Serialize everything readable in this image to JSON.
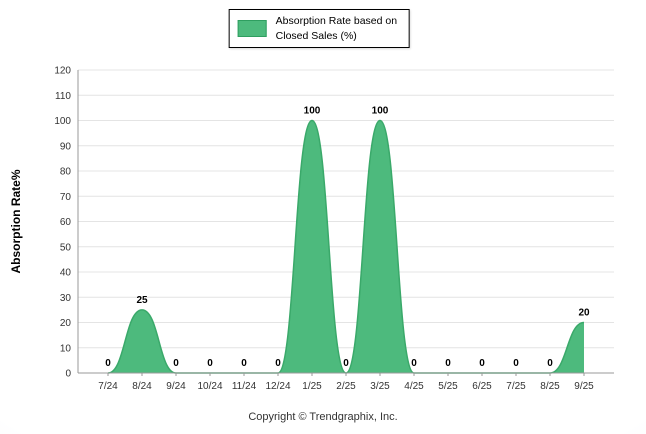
{
  "legend": {
    "label_line1": "Absorption Rate based on",
    "label_line2": "Closed Sales (%)",
    "swatch_color": "#4dba7d",
    "swatch_border": "#2f9e60"
  },
  "footer": {
    "copyright": "Copyright © Trendgraphix, Inc."
  },
  "chart_data": {
    "type": "area",
    "title": "",
    "xlabel": "",
    "ylabel": "Absorption Rate%",
    "categories": [
      "7/24",
      "8/24",
      "9/24",
      "10/24",
      "11/24",
      "12/24",
      "1/25",
      "2/25",
      "3/25",
      "4/25",
      "5/25",
      "6/25",
      "7/25",
      "8/25",
      "9/25"
    ],
    "series": [
      {
        "name": "Absorption Rate based on Closed Sales (%)",
        "values": [
          0,
          25,
          0,
          0,
          0,
          0,
          100,
          0,
          100,
          0,
          0,
          0,
          0,
          0,
          20
        ]
      }
    ],
    "ylim": [
      0,
      120
    ],
    "ytick_step": 10,
    "grid": true,
    "legend_position": "top",
    "colors": {
      "area_fill": "#4dba7d",
      "area_stroke": "#3aa96a",
      "grid": "#e4e4e4",
      "axis": "#999999",
      "tick_label": "#333333",
      "point_label": "#000000"
    }
  }
}
